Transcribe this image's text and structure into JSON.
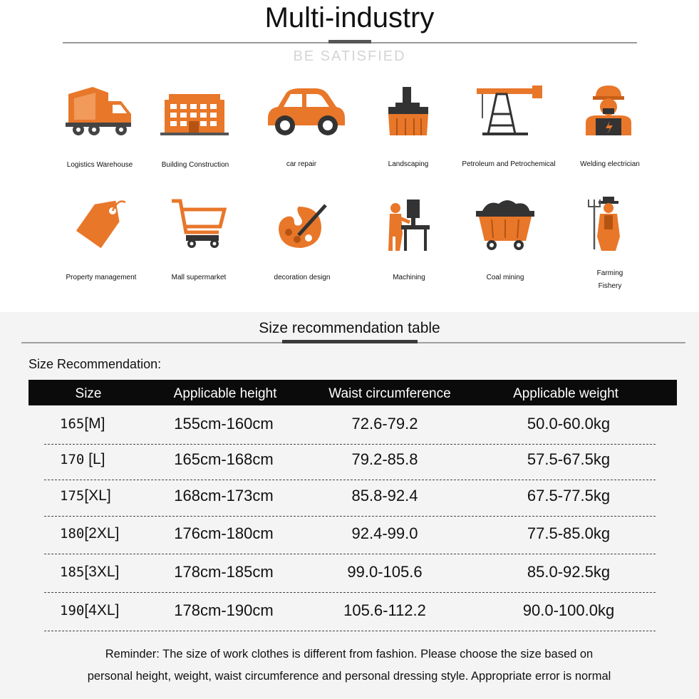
{
  "header": {
    "title": "Multi-industry",
    "subtitle": "BE SATISFIED"
  },
  "industries": [
    {
      "label": "Logistics Warehouse",
      "icon": "truck-icon"
    },
    {
      "label": "Building Construction",
      "icon": "building-icon"
    },
    {
      "label": "car repair",
      "icon": "car-icon"
    },
    {
      "label": "Landscaping",
      "icon": "brush-icon"
    },
    {
      "label": "Petroleum and Petrochemical",
      "icon": "oil-pump-icon"
    },
    {
      "label": "Welding electrician",
      "icon": "worker-icon"
    },
    {
      "label": "Property management",
      "icon": "tag-icon"
    },
    {
      "label": "Mall supermarket",
      "icon": "shopping-cart-icon"
    },
    {
      "label": "decoration design",
      "icon": "palette-icon"
    },
    {
      "label": "Machining",
      "icon": "machinist-icon"
    },
    {
      "label": "Coal mining",
      "icon": "mine-cart-icon"
    },
    {
      "label": "Farming",
      "label2": "Fishery",
      "icon": "farmer-icon"
    }
  ],
  "accent_color": "#e8772a",
  "size_section": {
    "title": "Size recommendation table",
    "intro": "Size Recommendation:",
    "headers": [
      "Size",
      "Applicable height",
      "Waist circumference",
      "Applicable weight"
    ],
    "rows": [
      {
        "num": "165",
        "size": "[M]",
        "height": "155cm-160cm",
        "waist": "72.6-79.2",
        "weight": "50.0-60.0kg"
      },
      {
        "num": "170",
        "size": " [L]",
        "height": "165cm-168cm",
        "waist": "79.2-85.8",
        "weight": "57.5-67.5kg"
      },
      {
        "num": "175",
        "size": "[XL]",
        "height": "168cm-173cm",
        "waist": "85.8-92.4",
        "weight": "67.5-77.5kg"
      },
      {
        "num": "180",
        "size": "[2XL]",
        "height": "176cm-180cm",
        "waist": "92.4-99.0",
        "weight": "77.5-85.0kg"
      },
      {
        "num": "185",
        "size": "[3XL]",
        "height": "178cm-185cm",
        "waist": "99.0-105.6",
        "weight": "85.0-92.5kg"
      },
      {
        "num": "190",
        "size": "[4XL]",
        "height": "178cm-190cm",
        "waist": "105.6-112.2",
        "weight": "90.0-100.0kg"
      }
    ],
    "reminder_line1": "Reminder: The size of work clothes is different from fashion. Please choose the size based on",
    "reminder_line2": "personal height, weight, waist circumference and personal dressing style. Appropriate error is normal"
  }
}
